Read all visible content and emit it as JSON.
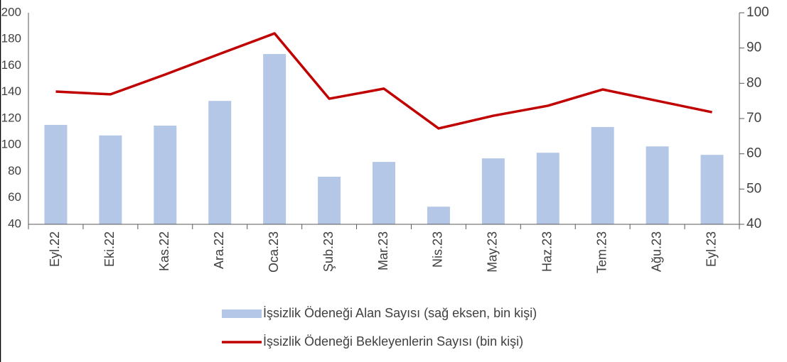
{
  "chart_data": {
    "type": "bar_line",
    "categories": [
      "Eyl.22",
      "Eki.22",
      "Kas.22",
      "Ara.22",
      "Oca.23",
      "Şub.23",
      "Mar.23",
      "Nis.23",
      "May.23",
      "Haz.23",
      "Tem.23",
      "Ağu.23",
      "Eyl.23"
    ],
    "series": [
      {
        "name": "İşsizlik Ödeneği Alan Sayısı (sağ eksen, bin kişi)",
        "type": "bar",
        "axis": "y2",
        "color": "#b4c7e7",
        "values": [
          68.2,
          65.2,
          68.0,
          75.0,
          88.3,
          53.5,
          57.7,
          45.0,
          58.7,
          60.3,
          67.6,
          62.1,
          59.7
        ]
      },
      {
        "name": "İşsizlik Ödeneği Bekleyenlerin Sayısı (bin kişi)",
        "type": "line",
        "axis": "y",
        "color": "#c00000",
        "values": [
          140.4,
          138.3,
          153.3,
          168.9,
          184.4,
          135.0,
          142.6,
          112.5,
          122.1,
          129.7,
          142.0,
          133.4,
          124.8
        ]
      }
    ],
    "ylim": [
      40,
      200
    ],
    "yticks": [
      40,
      60,
      80,
      100,
      120,
      140,
      160,
      180,
      200
    ],
    "y2lim": [
      40,
      100
    ],
    "y2ticks": [
      40,
      50,
      60,
      70,
      80,
      90,
      100
    ],
    "legend": "bottom"
  }
}
